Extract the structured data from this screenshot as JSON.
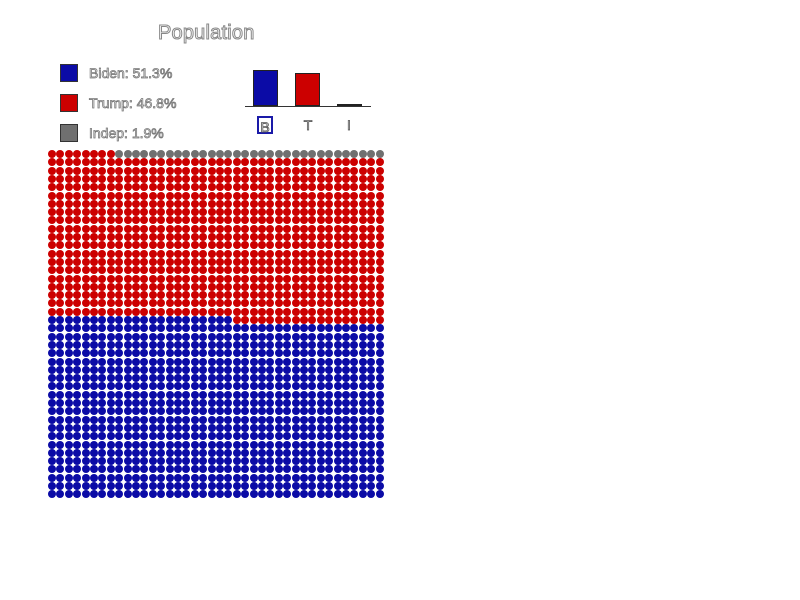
{
  "chart_data": {
    "type": "waffle",
    "title": "Population",
    "series": [
      {
        "name": "Biden",
        "short": "B",
        "percent": 51.3,
        "legend": "Biden: 51.3%",
        "color": "#0b0ba6"
      },
      {
        "name": "Trump",
        "short": "T",
        "percent": 46.8,
        "legend": "Trump: 46.8%",
        "color": "#cc0000"
      },
      {
        "name": "Indep",
        "short": "I",
        "percent": 1.9,
        "legend": "Indep: 1.9%",
        "color": "#707070"
      }
    ],
    "selected": "B",
    "grid": {
      "rows": 42,
      "cols": 40,
      "fill_order": "bottom-up"
    }
  }
}
